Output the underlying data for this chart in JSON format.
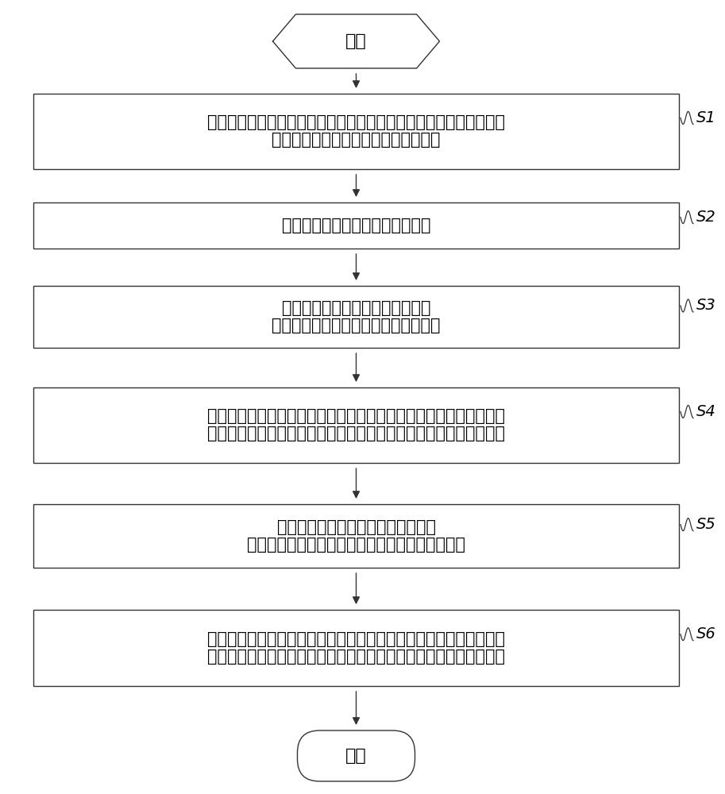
{
  "bg_color": "#ffffff",
  "line_color": "#000000",
  "box_color": "#ffffff",
  "box_edge_color": "#333333",
  "text_color": "#000000",
  "start_text": "开始",
  "end_text": "结束",
  "steps": [
    {
      "id": "S1",
      "lines": [
        "利用不同频率的交变电流同时驱动多个吸附固定于人体胸腔区域上的",
        "磁偶极子以产生不同频率点的空间磁场"
      ]
    },
    {
      "id": "S2",
      "lines": [
        "探测人体胸腔区域的空间磁场信号"
      ]
    },
    {
      "id": "S3",
      "lines": [
        "对空间磁场信号进行第一预设处理",
        "以获取不同频率点的空间磁场强度信息"
      ]
    },
    {
      "id": "S4",
      "lines": [
        "分别对不同频率点的空间磁场强度信息，进行第二预设处理识别每一",
        "频率点在空间磁场内的最大磁场值，获取最大磁场值对应的空间位置"
      ]
    },
    {
      "id": "S5",
      "lines": [
        "对人体的心磁信号进行第三预设处理",
        "以获取心磁信号的最大电流强度所对应的空间位置"
      ]
    },
    {
      "id": "S6",
      "lines": [
        "将最大磁场值对应的空间位置和最大电流强度所对应的空间位置相结",
        "合以辅助医护人员识别心磁图电活动对应人体胸腔区域上的具体位置"
      ]
    }
  ],
  "font_size": 16,
  "font_size_box": 15,
  "label_font_size": 14
}
